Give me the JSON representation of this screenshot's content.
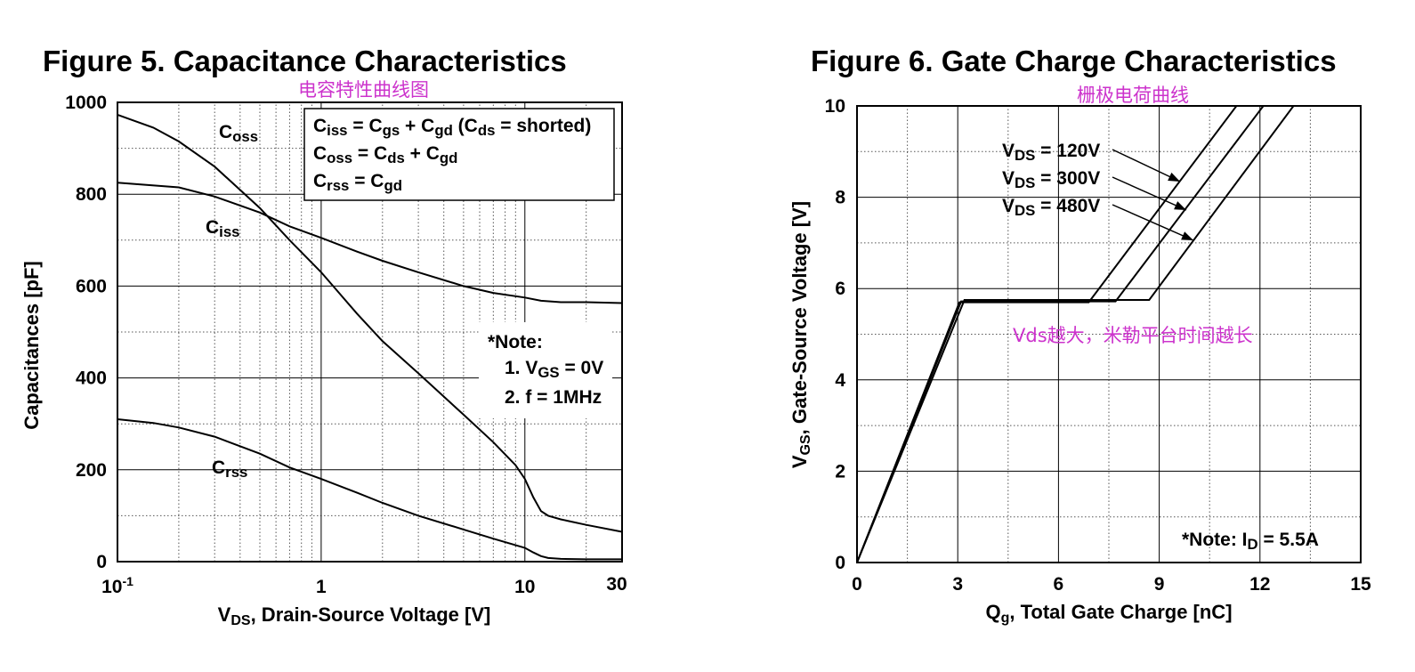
{
  "chart_data": [
    {
      "type": "line",
      "title": "Figure 5. Capacitance Characteristics",
      "annotation": "电容特性曲线图",
      "xlabel": {
        "main": "V",
        "sub": "DS",
        "rest": ", Drain-Source Voltage [V]"
      },
      "ylabel": "Capacitances [pF]",
      "xscale": "log",
      "xlim": [
        0.1,
        30
      ],
      "ylim": [
        0,
        1000
      ],
      "x_ticks": [
        {
          "value": 0.1,
          "base": "10",
          "exp": "-1"
        },
        {
          "value": 1,
          "base": "1",
          "exp": ""
        },
        {
          "value": 10,
          "base": "10",
          "exp": ""
        },
        {
          "value": 30,
          "base": "30",
          "exp": ""
        }
      ],
      "y_ticks": [
        0,
        200,
        400,
        600,
        800,
        1000
      ],
      "grid": true,
      "series": [
        {
          "name": "Coss",
          "label_main": "C",
          "label_sub": "oss",
          "x": [
            0.1,
            0.15,
            0.2,
            0.3,
            0.5,
            0.7,
            1,
            1.5,
            2,
            3,
            5,
            7,
            9,
            10,
            11,
            12,
            13,
            15,
            20,
            30
          ],
          "y": [
            973,
            945,
            915,
            860,
            770,
            700,
            630,
            540,
            480,
            410,
            320,
            260,
            210,
            180,
            140,
            110,
            100,
            92,
            80,
            65
          ]
        },
        {
          "name": "Ciss",
          "label_main": "C",
          "label_sub": "iss",
          "x": [
            0.1,
            0.2,
            0.3,
            0.5,
            0.7,
            1,
            1.5,
            2,
            3,
            5,
            7,
            10,
            12,
            15,
            20,
            30
          ],
          "y": [
            825,
            815,
            795,
            760,
            730,
            705,
            675,
            655,
            630,
            600,
            585,
            575,
            568,
            565,
            565,
            563
          ]
        },
        {
          "name": "Crss",
          "label_main": "C",
          "label_sub": "rss",
          "x": [
            0.1,
            0.15,
            0.2,
            0.3,
            0.5,
            0.7,
            1,
            1.5,
            2,
            3,
            5,
            7,
            10,
            11,
            12,
            13,
            15,
            20,
            30
          ],
          "y": [
            310,
            302,
            292,
            272,
            235,
            205,
            180,
            150,
            128,
            100,
            70,
            50,
            30,
            20,
            12,
            8,
            6,
            5,
            5
          ]
        }
      ],
      "legend_box": [
        [
          {
            "t": "C"
          },
          {
            "t": "iss",
            "sub": true
          },
          {
            "t": " = C"
          },
          {
            "t": "gs",
            "sub": true
          },
          {
            "t": " + C"
          },
          {
            "t": "gd",
            "sub": true
          },
          {
            "t": " (C"
          },
          {
            "t": "ds",
            "sub": true
          },
          {
            "t": " = shorted)"
          }
        ],
        [
          {
            "t": "C"
          },
          {
            "t": "oss",
            "sub": true
          },
          {
            "t": " = C"
          },
          {
            "t": "ds",
            "sub": true
          },
          {
            "t": " + C"
          },
          {
            "t": "gd",
            "sub": true
          }
        ],
        [
          {
            "t": "C"
          },
          {
            "t": "rss",
            "sub": true
          },
          {
            "t": " = C"
          },
          {
            "t": "gd",
            "sub": true
          }
        ]
      ],
      "note": {
        "title": "*Note:",
        "lines": [
          [
            {
              "t": "1. V"
            },
            {
              "t": "GS",
              "sub": true
            },
            {
              "t": " = 0V"
            }
          ],
          [
            {
              "t": "2. f = 1MHz"
            }
          ]
        ]
      }
    },
    {
      "type": "line",
      "title": "Figure 6. Gate Charge Characteristics",
      "annotation": "栅极电荷曲线",
      "annotation2": "Vds越大，米勒平台时间越长",
      "xlabel": {
        "main": "Q",
        "sub": "g",
        "rest": ", Total Gate Charge [nC]"
      },
      "ylabel": {
        "main": "V",
        "sub": "GS",
        "rest": ",  Gate-Source Voltage [V]"
      },
      "xlim": [
        0,
        15
      ],
      "ylim": [
        0,
        10
      ],
      "x_ticks": [
        0,
        3,
        6,
        9,
        12,
        15
      ],
      "y_ticks": [
        0,
        2,
        4,
        6,
        8,
        10
      ],
      "grid": true,
      "series": [
        {
          "name": "VDS = 120V",
          "label_main": "V",
          "label_sub": "DS",
          "label_rest": " = 120V",
          "x": [
            0,
            3.05,
            6.9,
            11.3
          ],
          "y": [
            0,
            5.7,
            5.7,
            10
          ]
        },
        {
          "name": "VDS = 300V",
          "label_main": "V",
          "label_sub": "DS",
          "label_rest": " = 300V",
          "x": [
            0,
            3.1,
            7.7,
            12.1
          ],
          "y": [
            0,
            5.72,
            5.72,
            10
          ]
        },
        {
          "name": "VDS = 480V",
          "label_main": "V",
          "label_sub": "DS",
          "label_rest": " = 480V",
          "x": [
            0,
            3.2,
            8.7,
            13.0
          ],
          "y": [
            0,
            5.75,
            5.75,
            10
          ]
        }
      ],
      "note": {
        "lines": [
          [
            {
              "t": "*Note: I"
            },
            {
              "t": "D",
              "sub": true
            },
            {
              "t": " = 5.5A"
            }
          ]
        ]
      }
    }
  ]
}
